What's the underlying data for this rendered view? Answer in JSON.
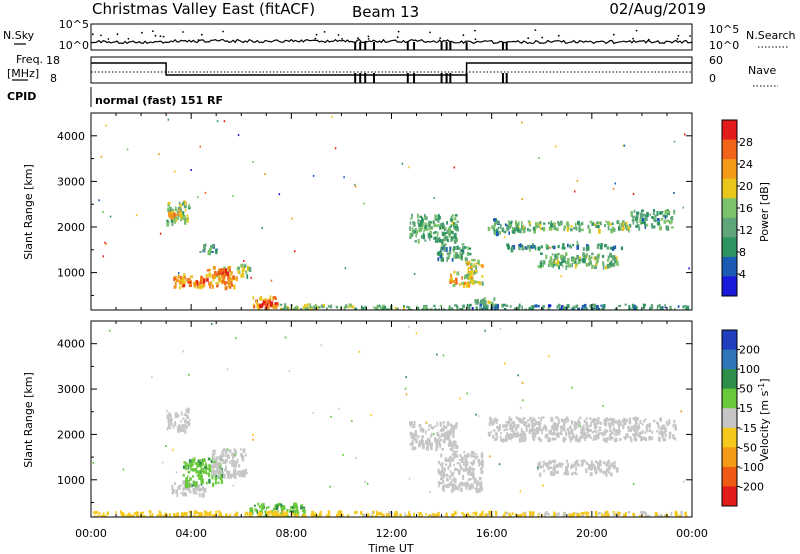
{
  "header": {
    "title": "Christmas Valley East (fitACF)",
    "beam": "Beam 13",
    "date": "02/Aug/2019",
    "mode": "normal (fast) 151 RF"
  },
  "strip_labels": {
    "nsky": "N.Sky",
    "nsky_ticks": [
      "10^5",
      "10^0"
    ],
    "nsearch": "N.Search",
    "nsearch_ticks": [
      "10^5",
      "10^0"
    ],
    "freq_line1": "Freq.",
    "freq_line2": "[MHz]",
    "freq_ticks": [
      "18",
      "8"
    ],
    "nave": "Nave",
    "nave_ticks": [
      "60",
      "0"
    ],
    "cpid": "CPID"
  },
  "colors": {
    "power_scale": [
      "#1a1adb",
      "#1c5bb3",
      "#2e9461",
      "#5fa57a",
      "#7cc26a",
      "#e9c71a",
      "#f39a18",
      "#f1651b",
      "#e21b1b"
    ],
    "velocity_scale": [
      "#1f3fbf",
      "#2f75b8",
      "#2f8f4a",
      "#68c93a",
      "#c6c6c6",
      "#f5c91c",
      "#f39b18",
      "#ef5a15",
      "#e21b1b"
    ]
  },
  "chart_data": [
    {
      "type": "heatmap",
      "title": "",
      "xlabel": "Time UT",
      "ylabel": "Slant Range [km]",
      "xlim": [
        "00:00",
        "24:00"
      ],
      "ylim": [
        180,
        4500
      ],
      "x_tick_labels": [
        "00:00",
        "04:00",
        "08:00",
        "12:00",
        "16:00",
        "20:00",
        "00:00"
      ],
      "y_tick_labels": [
        "1000",
        "2000",
        "3000",
        "4000"
      ],
      "y_ticks": [
        1000,
        2000,
        3000,
        4000
      ],
      "colorbar": {
        "label": "Power [dB]",
        "tick_labels": [
          "4",
          "8",
          "12",
          "16",
          "20",
          "24",
          "28"
        ],
        "range": [
          0,
          30
        ]
      },
      "regions": [
        {
          "t0": 3.0,
          "t1": 3.9,
          "r0": 2100,
          "r1": 2600,
          "value": 14
        },
        {
          "t0": 3.0,
          "t1": 3.6,
          "r0": 2250,
          "r1": 2400,
          "value": 20
        },
        {
          "t0": 3.2,
          "t1": 5.8,
          "r0": 700,
          "r1": 1000,
          "value": 22
        },
        {
          "t0": 3.8,
          "t1": 4.6,
          "r0": 800,
          "r1": 920,
          "value": 27
        },
        {
          "t0": 4.5,
          "t1": 5.6,
          "r0": 950,
          "r1": 1150,
          "value": 20
        },
        {
          "t0": 5.0,
          "t1": 5.5,
          "r0": 1000,
          "r1": 1100,
          "value": 27
        },
        {
          "t0": 4.3,
          "t1": 5.0,
          "r0": 1450,
          "r1": 1650,
          "value": 10
        },
        {
          "t0": 5.8,
          "t1": 6.3,
          "r0": 950,
          "r1": 1200,
          "value": 14
        },
        {
          "t0": 6.4,
          "t1": 7.4,
          "r0": 250,
          "r1": 500,
          "value": 22
        },
        {
          "t0": 6.7,
          "t1": 7.2,
          "r0": 300,
          "r1": 400,
          "value": 27
        },
        {
          "t0": 7.4,
          "t1": 10.5,
          "r0": 180,
          "r1": 330,
          "value": 15
        },
        {
          "t0": 10.5,
          "t1": 14.5,
          "r0": 180,
          "r1": 300,
          "value": 12
        },
        {
          "t0": 12.7,
          "t1": 14.6,
          "r0": 1700,
          "r1": 2300,
          "value": 12
        },
        {
          "t0": 13.8,
          "t1": 15.1,
          "r0": 1300,
          "r1": 1650,
          "value": 11
        },
        {
          "t0": 14.3,
          "t1": 15.2,
          "r0": 750,
          "r1": 1050,
          "value": 20
        },
        {
          "t0": 14.9,
          "t1": 15.6,
          "r0": 800,
          "r1": 1300,
          "value": 17
        },
        {
          "t0": 15.3,
          "t1": 16.4,
          "r0": 330,
          "r1": 460,
          "value": 14
        },
        {
          "t0": 15.8,
          "t1": 16.9,
          "r0": 1900,
          "r1": 2200,
          "value": 10
        },
        {
          "t0": 16.9,
          "t1": 21.5,
          "r0": 1950,
          "r1": 2150,
          "value": 13
        },
        {
          "t0": 21.5,
          "t1": 23.3,
          "r0": 2000,
          "r1": 2400,
          "value": 11
        },
        {
          "t0": 16.5,
          "t1": 21.2,
          "r0": 1550,
          "r1": 1650,
          "value": 9
        },
        {
          "t0": 17.8,
          "t1": 21.0,
          "r0": 1150,
          "r1": 1450,
          "value": 13
        },
        {
          "t0": 14.5,
          "t1": 23.8,
          "r0": 180,
          "r1": 320,
          "value": 8
        }
      ]
    },
    {
      "type": "heatmap",
      "title": "",
      "xlabel": "Time UT",
      "ylabel": "Slant Range [km]",
      "xlim": [
        "00:00",
        "24:00"
      ],
      "ylim": [
        180,
        4500
      ],
      "x_tick_labels": [
        "00:00",
        "04:00",
        "08:00",
        "12:00",
        "16:00",
        "20:00",
        "00:00"
      ],
      "y_tick_labels": [
        "1000",
        "2000",
        "3000",
        "4000"
      ],
      "y_ticks": [
        1000,
        2000,
        3000,
        4000
      ],
      "colorbar": {
        "label": "Velocity [m s^-1]",
        "tick_labels": [
          "200",
          "100",
          "50",
          "15",
          "-15",
          "-50",
          "-100",
          "-200"
        ]
      },
      "regions": [
        {
          "t0": 3.0,
          "t1": 3.9,
          "r0": 2100,
          "r1": 2600,
          "value": 0
        },
        {
          "t0": 3.2,
          "t1": 4.6,
          "r0": 700,
          "r1": 1000,
          "value": 0
        },
        {
          "t0": 3.6,
          "t1": 5.2,
          "r0": 900,
          "r1": 1500,
          "value": 40
        },
        {
          "t0": 4.8,
          "t1": 6.2,
          "r0": 1100,
          "r1": 1700,
          "value": 0
        },
        {
          "t0": 6.3,
          "t1": 8.5,
          "r0": 180,
          "r1": 500,
          "value": 40
        },
        {
          "t0": 0.0,
          "t1": 10.5,
          "r0": 180,
          "r1": 330,
          "value": -30
        },
        {
          "t0": 10.5,
          "t1": 16.0,
          "r0": 180,
          "r1": 320,
          "value": -25
        },
        {
          "t0": 12.7,
          "t1": 14.6,
          "r0": 1700,
          "r1": 2300,
          "value": 0
        },
        {
          "t0": 13.8,
          "t1": 15.6,
          "r0": 800,
          "r1": 1650,
          "value": 0
        },
        {
          "t0": 15.8,
          "t1": 23.3,
          "r0": 1900,
          "r1": 2400,
          "value": 0
        },
        {
          "t0": 17.8,
          "t1": 21.0,
          "r0": 1150,
          "r1": 1450,
          "value": 0
        },
        {
          "t0": 16.0,
          "t1": 23.8,
          "r0": 180,
          "r1": 320,
          "value": -20
        }
      ]
    }
  ]
}
